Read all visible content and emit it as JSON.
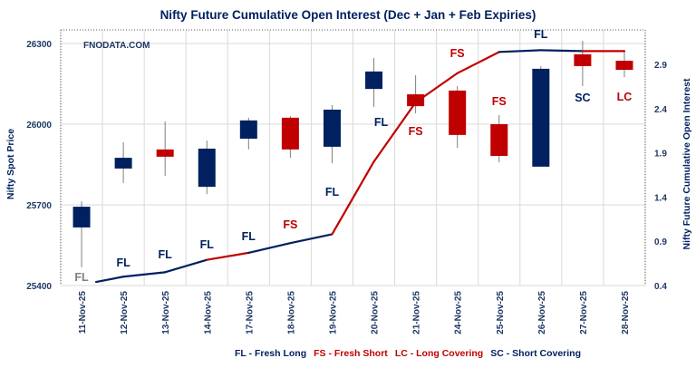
{
  "chart_data": {
    "type": "candlestick+line",
    "title": "Nifty Future Cumulative Open Interest (Dec + Jan  + Feb Expiries)",
    "watermark": "FNODATA.COM",
    "ylabel": "Nifty Spot Price",
    "y2label": "Nifty Future Cumulative Open Interest",
    "ylim": [
      25400,
      26300
    ],
    "y2lim": [
      0.4,
      3.4
    ],
    "yticks": [
      "25400",
      "25700",
      "26000",
      "26300"
    ],
    "y2ticks": [
      "0.4",
      "0.9",
      "1.4",
      "1.9",
      "2.4",
      "2.9"
    ],
    "grid": true,
    "categories": [
      "11-Nov-25",
      "12-Nov-25",
      "13-Nov-25",
      "14-Nov-25",
      "17-Nov-25",
      "18-Nov-25",
      "19-Nov-25",
      "20-Nov-25",
      "21-Nov-25",
      "24-Nov-25",
      "25-Nov-25",
      "26-Nov-25",
      "27-Nov-25",
      "28-Nov-25"
    ],
    "candles": [
      {
        "body": [
          25616,
          25693
        ],
        "wick": [
          25468,
          25713
        ],
        "color": "#002060"
      },
      {
        "body": [
          25835,
          25875
        ],
        "wick": [
          25781,
          25933
        ],
        "color": "#002060"
      },
      {
        "body": [
          25879,
          25906
        ],
        "wick": [
          25808,
          26010
        ],
        "color": "#C00000"
      },
      {
        "body": [
          25767,
          25909
        ],
        "wick": [
          25740,
          25939
        ],
        "color": "#002060"
      },
      {
        "body": [
          25946,
          26014
        ],
        "wick": [
          25906,
          26024
        ],
        "color": "#002060"
      },
      {
        "body": [
          25906,
          26024
        ],
        "wick": [
          25875,
          26030
        ],
        "color": "#C00000"
      },
      {
        "body": [
          25916,
          26054
        ],
        "wick": [
          25855,
          26071
        ],
        "color": "#002060"
      },
      {
        "body": [
          26131,
          26196
        ],
        "wick": [
          26064,
          26246
        ],
        "color": "#002060"
      },
      {
        "body": [
          26067,
          26111
        ],
        "wick": [
          26040,
          26182
        ],
        "color": "#C00000"
      },
      {
        "body": [
          25960,
          26125
        ],
        "wick": [
          25912,
          26142
        ],
        "color": "#C00000"
      },
      {
        "body": [
          25882,
          26000
        ],
        "wick": [
          25858,
          26034
        ],
        "color": "#C00000"
      },
      {
        "body": [
          25842,
          26206
        ],
        "wick": [
          25842,
          26216
        ],
        "color": "#002060"
      },
      {
        "body": [
          26216,
          26260
        ],
        "wick": [
          26142,
          26310
        ],
        "color": "#C00000"
      },
      {
        "body": [
          26202,
          26236
        ],
        "wick": [
          26175,
          26270
        ],
        "color": "#C00000"
      }
    ],
    "open_interest": {
      "values": [
        0.44,
        0.5,
        0.55,
        0.69,
        0.77,
        0.88,
        0.98,
        1.8,
        2.47,
        2.8,
        3.04,
        3.06,
        3.05,
        3.05
      ],
      "segment_colors": [
        "#002060",
        "#002060",
        "#002060",
        "#C00000",
        "#002060",
        "#002060",
        "#C00000",
        "#C00000",
        "#C00000",
        "#C00000",
        "#002060",
        "#002060",
        "#C00000"
      ]
    },
    "annotations": [
      {
        "text": "FL",
        "color": "#7F7F7F"
      },
      {
        "text": "FL",
        "color": "#002060"
      },
      {
        "text": "FL",
        "color": "#002060"
      },
      {
        "text": "FL",
        "color": "#002060"
      },
      {
        "text": "FL",
        "color": "#002060"
      },
      {
        "text": "FS",
        "color": "#C00000"
      },
      {
        "text": "FL",
        "color": "#002060"
      },
      {
        "text": "FL",
        "color": "#002060"
      },
      {
        "text": "FS",
        "color": "#C00000"
      },
      {
        "text": "FS",
        "color": "#C00000"
      },
      {
        "text": "FS",
        "color": "#C00000"
      },
      {
        "text": "FL",
        "color": "#002060"
      },
      {
        "text": "SC",
        "color": "#002060"
      },
      {
        "text": "LC",
        "color": "#C00000"
      }
    ],
    "legend": [
      {
        "text": "FL - Fresh Long",
        "color": "#002060"
      },
      {
        "text": "FS - Fresh Short",
        "color": "#C00000"
      },
      {
        "text": "LC - Long Covering",
        "color": "#C00000"
      },
      {
        "text": "SC - Short Covering",
        "color": "#002060"
      }
    ],
    "legend_position": "bottom"
  }
}
